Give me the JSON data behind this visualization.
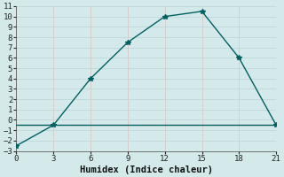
{
  "xlabel": "Humidex (Indice chaleur)",
  "bg_color": "#d4eaea",
  "grid_color": "#c0d8d8",
  "grid_color_pink": "#d8c8c8",
  "line_color": "#006060",
  "line1_x": [
    0,
    3,
    6,
    9,
    12,
    15,
    18,
    21
  ],
  "line1_y": [
    -2.5,
    -0.5,
    4.0,
    7.5,
    10.0,
    10.5,
    6.0,
    -0.5
  ],
  "line2_x": [
    0,
    3,
    6,
    9,
    12,
    15,
    18,
    21
  ],
  "line2_y": [
    -0.5,
    -0.5,
    -0.5,
    -0.5,
    -0.5,
    -0.5,
    -0.5,
    -0.5
  ],
  "xlim": [
    0,
    21
  ],
  "ylim": [
    -3,
    11
  ],
  "xticks": [
    0,
    3,
    6,
    9,
    12,
    15,
    18,
    21
  ],
  "yticks": [
    -3,
    -2,
    -1,
    0,
    1,
    2,
    3,
    4,
    5,
    6,
    7,
    8,
    9,
    10,
    11
  ],
  "marker": "*",
  "markersize": 4,
  "linewidth": 1.0,
  "xlabel_fontsize": 7.5,
  "tick_fontsize": 6.5
}
